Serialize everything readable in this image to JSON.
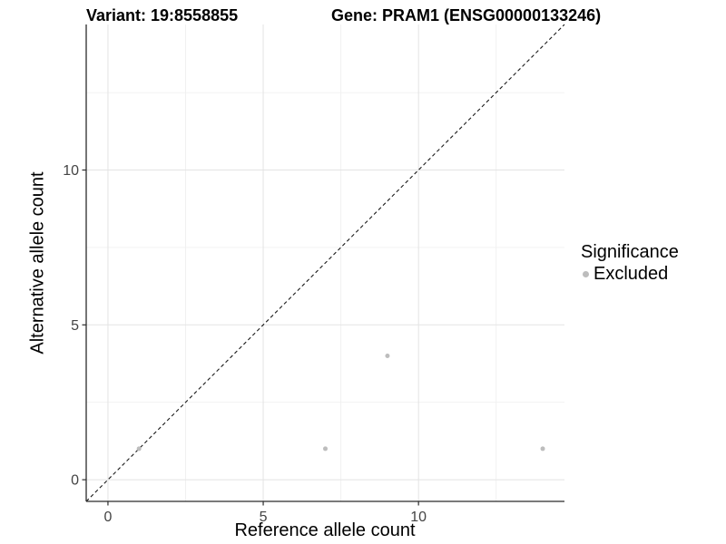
{
  "titles": {
    "variant": "Variant: 19:8558855",
    "gene": "Gene: PRAM1 (ENSG00000133246)"
  },
  "legend": {
    "title": "Significance",
    "items": [
      {
        "label": "Excluded",
        "color": "#bdbdbd"
      }
    ]
  },
  "chart_data": {
    "type": "scatter",
    "title_left": "Variant: 19:8558855",
    "title_right": "Gene: PRAM1 (ENSG00000133246)",
    "xlabel": "Reference allele count",
    "ylabel": "Alternative allele count",
    "xlim": [
      -0.7,
      14.7
    ],
    "ylim": [
      -0.7,
      14.7
    ],
    "xticks": [
      0,
      5,
      10
    ],
    "yticks": [
      0,
      5,
      10
    ],
    "xticks_minor": [
      2.5,
      7.5,
      12.5
    ],
    "yticks_minor": [
      2.5,
      7.5,
      12.5
    ],
    "grid": true,
    "legend_position": "right",
    "legend_title": "Significance",
    "series": [
      {
        "name": "Excluded",
        "color": "#bdbdbd",
        "points": [
          {
            "x": 1,
            "y": 1
          },
          {
            "x": 7,
            "y": 1
          },
          {
            "x": 9,
            "y": 4
          },
          {
            "x": 14,
            "y": 1
          }
        ]
      }
    ],
    "reference_line": {
      "type": "identity",
      "style": "dashed",
      "color": "#1a1a1a"
    },
    "colors": {
      "grid_major": "#e3e3e3",
      "grid_minor": "#f0f0f0",
      "axis": "#2b2b2b",
      "tick_text": "#444444",
      "background": "#ffffff"
    }
  }
}
